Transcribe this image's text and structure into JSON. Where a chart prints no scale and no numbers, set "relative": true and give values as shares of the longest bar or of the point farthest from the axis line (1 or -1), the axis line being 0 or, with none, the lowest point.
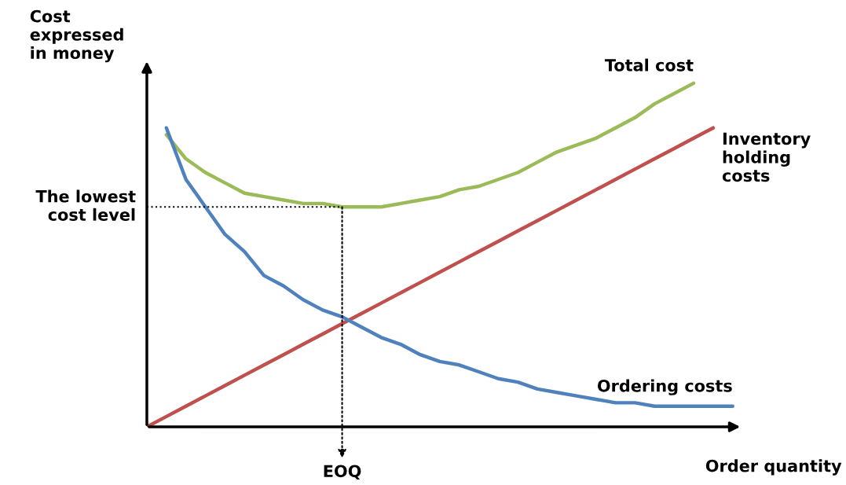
{
  "chart_data": {
    "type": "line",
    "relative": true,
    "xlabel": "Order quantity",
    "ylabel": "Cost\nexpressed\nin money",
    "legend": false,
    "line_style": "solid",
    "marker": "none",
    "annotations": [
      {
        "text": "EOQ",
        "y": 0.64
      }
    ],
    "categories": [
      null,
      null,
      null,
      null,
      null,
      null,
      null,
      null,
      null,
      null,
      null,
      null,
      null,
      null,
      null,
      null,
      null,
      null,
      null,
      null,
      null,
      null,
      null,
      null,
      null,
      null,
      null,
      null,
      null,
      null,
      null
    ],
    "series": [
      {
        "name": "Total cost",
        "color": "#9bbb59",
        "values": [
          null,
          0.85,
          0.78,
          0.74,
          0.71,
          0.68,
          0.67,
          0.66,
          0.65,
          0.65,
          0.64,
          0.64,
          0.64,
          0.65,
          0.66,
          0.67,
          0.69,
          0.7,
          0.72,
          0.74,
          0.77,
          0.8,
          0.82,
          0.84,
          0.87,
          0.9,
          0.94,
          0.97,
          1.0,
          null,
          null
        ]
      },
      {
        "name": "Inventory\nholding\ncosts",
        "color": "#c0504d",
        "values": [
          0,
          0.03,
          0.06,
          0.09,
          0.12,
          0.15,
          0.18,
          0.21,
          0.24,
          0.27,
          0.3,
          0.33,
          0.36,
          0.39,
          0.42,
          0.45,
          0.48,
          0.51,
          0.54,
          0.57,
          0.6,
          0.63,
          0.66,
          0.69,
          0.72,
          0.75,
          0.78,
          0.81,
          0.84,
          0.87,
          null
        ]
      },
      {
        "name": "Ordering costs",
        "color": "#4f81bd",
        "values": [
          null,
          0.87,
          0.72,
          0.64,
          0.56,
          0.51,
          0.44,
          0.41,
          0.37,
          0.34,
          0.32,
          0.29,
          0.26,
          0.24,
          0.21,
          0.19,
          0.18,
          0.16,
          0.14,
          0.13,
          0.11,
          0.1,
          0.09,
          0.08,
          0.07,
          0.07,
          0.06,
          0.06,
          0.06,
          0.06,
          0.06
        ]
      }
    ],
    "ref_lines": [
      {
        "axis": "y",
        "value": 0.64,
        "label": "The lowest\ncost level",
        "line_style": "dotted",
        "color": "#000000"
      }
    ]
  }
}
